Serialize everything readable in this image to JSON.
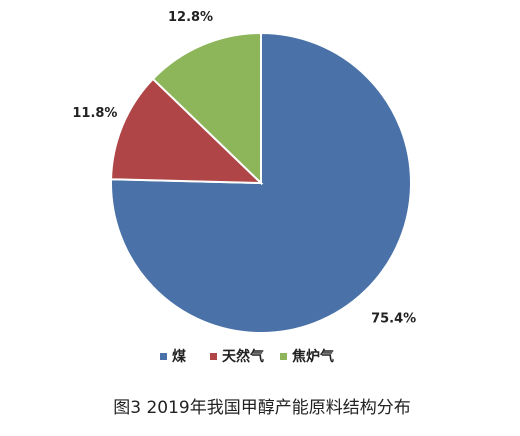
{
  "chart_data": {
    "type": "pie",
    "title": "图3  2019年我国甲醇产能原料结构分布",
    "categories": [
      "煤",
      "天然气",
      "焦炉气"
    ],
    "values": [
      75.4,
      11.8,
      12.8
    ],
    "value_labels": [
      "75.4%",
      "11.8%",
      "12.8%"
    ],
    "colors": [
      "#4a72a8",
      "#b04547",
      "#8db55a"
    ],
    "legend": "bottom"
  }
}
